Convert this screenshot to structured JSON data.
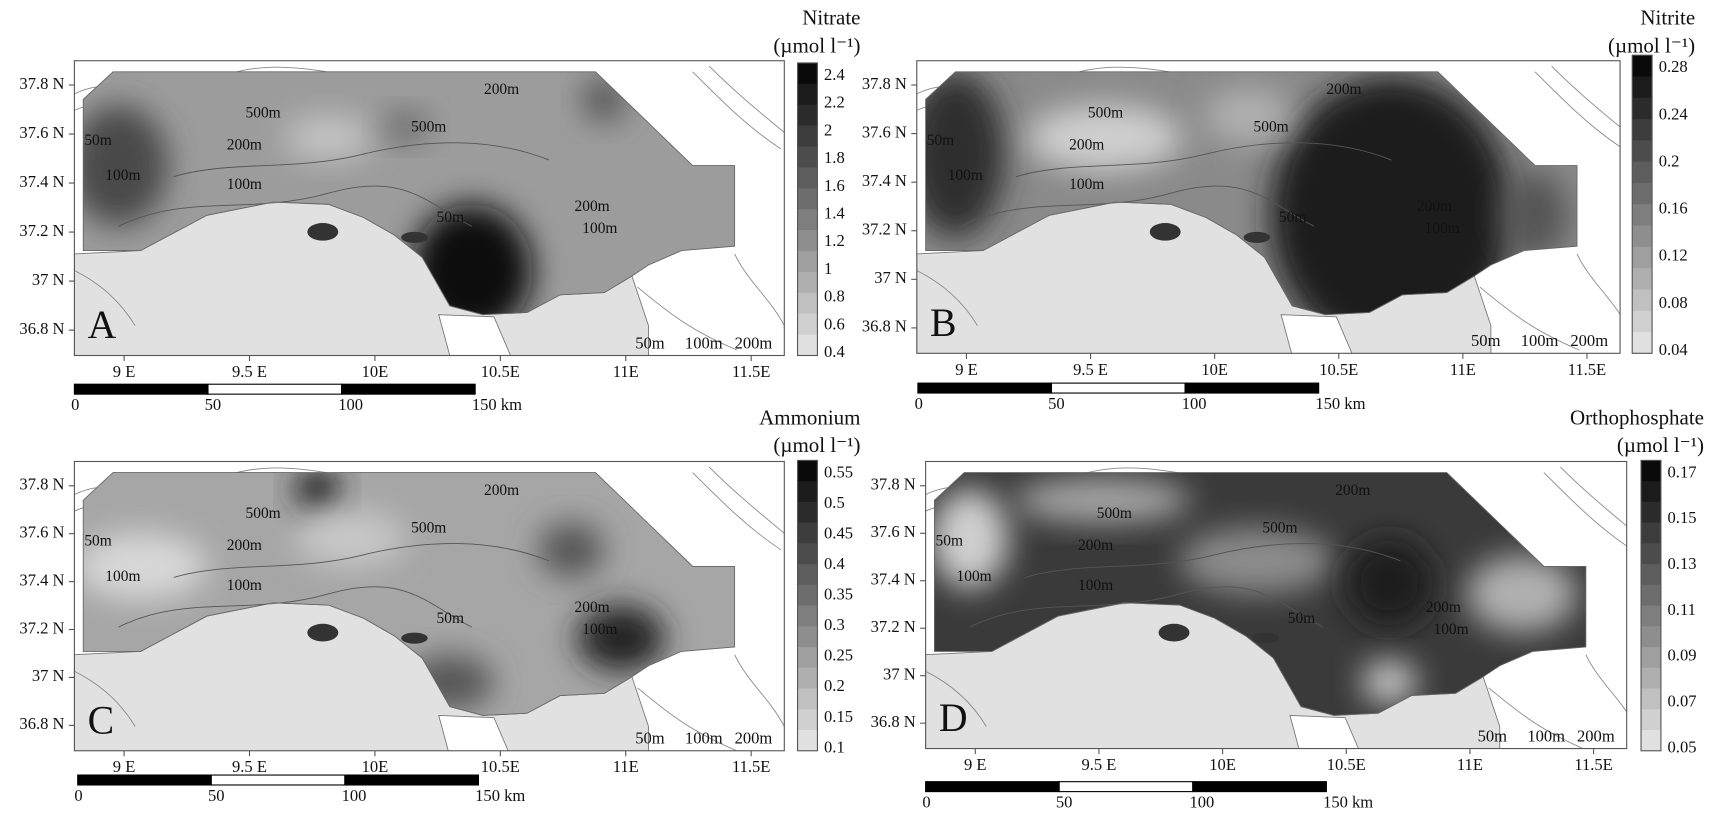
{
  "panels": [
    {
      "letter": "A",
      "title": "Nitrate",
      "unit": "(µmol l⁻¹)",
      "colorbar_ticks": [
        2.4,
        2.2,
        2,
        1.8,
        1.6,
        1.4,
        1.2,
        1,
        0.8,
        0.6,
        0.4
      ],
      "lat_labels": [
        "37.8 N",
        "37.6 N",
        "37.4 N",
        "37.2 N",
        "37 N",
        "36.8 N"
      ],
      "lon_labels": [
        "9 E",
        "9.5 E",
        "10E",
        "10.5E",
        "11E",
        "11.5E"
      ],
      "contour_labels": [
        "500m",
        "500m",
        "200m",
        "50m",
        "200m",
        "100m",
        "100m",
        "200m",
        "100m",
        "50m"
      ],
      "depth_legend": [
        "50m",
        "100m",
        "200m"
      ],
      "scale_labels": [
        "0",
        "50",
        "100",
        "150 km"
      ]
    },
    {
      "letter": "B",
      "title": "Nitrite",
      "unit": "(µmol l⁻¹)",
      "colorbar_ticks": [
        0.28,
        0.24,
        0.2,
        0.16,
        0.12,
        0.08,
        0.04
      ],
      "lat_labels": [
        "37.8 N",
        "37.6 N",
        "37.4 N",
        "37.2 N",
        "37 N",
        "36.8 N"
      ],
      "lon_labels": [
        "9 E",
        "9.5 E",
        "10E",
        "10.5E",
        "11E",
        "11.5E"
      ],
      "contour_labels": [
        "500m",
        "500m",
        "200m",
        "50m",
        "200m",
        "100m",
        "100m",
        "200m",
        "100m",
        "50m"
      ],
      "depth_legend": [
        "50m",
        "100m",
        "200m"
      ],
      "scale_labels": [
        "0",
        "50",
        "100",
        "150 km"
      ]
    },
    {
      "letter": "C",
      "title": "Ammonium",
      "unit": "(µmol l⁻¹)",
      "colorbar_ticks": [
        0.55,
        0.5,
        0.45,
        0.4,
        0.35,
        0.3,
        0.25,
        0.2,
        0.15,
        0.1
      ],
      "lat_labels": [
        "37.8 N",
        "37.6 N",
        "37.4 N",
        "37.2 N",
        "37 N",
        "36.8 N"
      ],
      "lon_labels": [
        "9 E",
        "9.5 E",
        "10E",
        "10.5E",
        "11E",
        "11.5E"
      ],
      "contour_labels": [
        "500m",
        "500m",
        "200m",
        "50m",
        "200m",
        "100m",
        "100m",
        "200m",
        "100m",
        "50m"
      ],
      "depth_legend": [
        "50m",
        "100m",
        "200m"
      ],
      "scale_labels": [
        "0",
        "50",
        "100",
        "150 km"
      ]
    },
    {
      "letter": "D",
      "title": "Orthophosphate",
      "unit": "(µmol l⁻¹)",
      "colorbar_ticks": [
        0.17,
        0.15,
        0.13,
        0.11,
        0.09,
        0.07,
        0.05
      ],
      "lat_labels": [
        "37.8 N",
        "37.6 N",
        "37.4 N",
        "37.2 N",
        "37 N",
        "36.8 N"
      ],
      "lon_labels": [
        "9 E",
        "9.5 E",
        "10E",
        "10.5E",
        "11E",
        "11.5E"
      ],
      "contour_labels": [
        "500m",
        "500m",
        "200m",
        "50m",
        "200m",
        "100m",
        "100m",
        "200m",
        "100m",
        "50m"
      ],
      "depth_legend": [
        "50m",
        "100m",
        "200m"
      ],
      "scale_labels": [
        "0",
        "50",
        "100",
        "150 km"
      ]
    }
  ]
}
